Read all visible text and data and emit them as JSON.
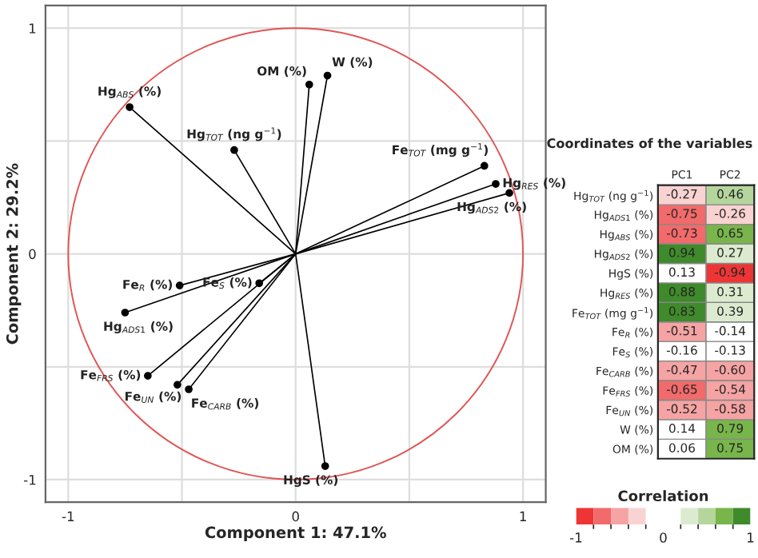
{
  "chart_data": [
    {
      "type": "scatter",
      "xlabel": "Component 1: 47.1%",
      "ylabel": "Component 2: 29.2%",
      "xlim": [
        -1.1,
        1.1
      ],
      "ylim": [
        -1.1,
        1.1
      ],
      "xticks": [
        {
          "value": -1,
          "label": "-1"
        },
        {
          "value": -0.5,
          "label": null
        },
        0,
        {
          "value": 0.5,
          "label": null
        },
        1
      ],
      "yticks": [
        {
          "value": -1,
          "label": "-1"
        },
        {
          "value": -0.5,
          "label": null
        },
        0,
        {
          "value": 0.5,
          "label": null
        },
        1
      ],
      "grid": true,
      "marker": "circle",
      "legend": false,
      "series": [
        {
          "name": "Hg$_{TOT}$ (ng g$^{−1}$)",
          "color": "#000000",
          "x": [
            -0.27
          ],
          "values": [
            0.46
          ]
        },
        {
          "name": "Hg$_{ADS1}$ (%)",
          "color": "#000000",
          "x": [
            -0.75
          ],
          "values": [
            -0.26
          ]
        },
        {
          "name": "Hg$_{ABS}$ (%)",
          "color": "#000000",
          "x": [
            -0.73
          ],
          "values": [
            0.65
          ]
        },
        {
          "name": "Hg$_{ADS2}$ (%)",
          "color": "#000000",
          "x": [
            0.94
          ],
          "values": [
            0.27
          ]
        },
        {
          "name": "HgS (%)",
          "color": "#000000",
          "x": [
            0.13
          ],
          "values": [
            -0.94
          ]
        },
        {
          "name": "Hg$_{RES}$ (%)",
          "color": "#000000",
          "x": [
            0.88
          ],
          "values": [
            0.31
          ]
        },
        {
          "name": "Fe$_{TOT}$ (mg g$^{−1}$)",
          "color": "#000000",
          "x": [
            0.83
          ],
          "values": [
            0.39
          ]
        },
        {
          "name": "Fe$_{R}$ (%)",
          "color": "#000000",
          "x": [
            -0.51
          ],
          "values": [
            -0.14
          ]
        },
        {
          "name": "Fe$_{S}$ (%)",
          "color": "#000000",
          "x": [
            -0.16
          ],
          "values": [
            -0.13
          ]
        },
        {
          "name": "Fe$_{CARB}$ (%)",
          "color": "#000000",
          "x": [
            -0.47
          ],
          "values": [
            -0.6
          ]
        },
        {
          "name": "Fe$_{FRS}$ (%)",
          "color": "#000000",
          "x": [
            -0.65
          ],
          "values": [
            -0.54
          ]
        },
        {
          "name": "Fe$_{UN}$ (%)",
          "color": "#000000",
          "x": [
            -0.52
          ],
          "values": [
            -0.58
          ]
        },
        {
          "name": "W (%)",
          "color": "#000000",
          "x": [
            0.14
          ],
          "values": [
            0.79
          ]
        },
        {
          "name": "OM (%)",
          "color": "#000000",
          "x": [
            0.06
          ],
          "values": [
            0.75
          ]
        }
      ]
    },
    {
      "type": "heatmap",
      "title": "Coordinates of the variables",
      "clabel": "Correlation",
      "categories": [
        "PC1",
        "PC2"
      ],
      "y_categories": [
        "Hg$_{TOT}$ (ng g$^{−1}$)",
        "Hg$_{ADS1}$ (%)",
        "Hg$_{ABS}$ (%)",
        "Hg$_{ADS2}$ (%)",
        "HgS (%)",
        "Hg$_{RES}$ (%)",
        "Fe$_{TOT}$ (mg g$^{−1}$)",
        "Fe$_{R}$ (%)",
        "Fe$_{S}$ (%)",
        "Fe$_{CARB}$ (%)",
        "Fe$_{FRS}$ (%)",
        "Fe$_{UN}$ (%)",
        "W (%)",
        "OM (%)"
      ],
      "cells": [
        [
          -0.27,
          0.46
        ],
        [
          -0.75,
          -0.26
        ],
        [
          -0.73,
          0.65
        ],
        [
          0.94,
          0.27
        ],
        [
          0.13,
          -0.94
        ],
        [
          0.88,
          0.31
        ],
        [
          0.83,
          0.39
        ],
        [
          -0.51,
          -0.14
        ],
        [
          -0.16,
          -0.13
        ],
        [
          -0.47,
          -0.6
        ],
        [
          -0.65,
          -0.54
        ],
        [
          -0.52,
          -0.58
        ],
        [
          0.14,
          0.79
        ],
        [
          0.06,
          0.75
        ]
      ],
      "cell_labels": [
        [
          "-0.27",
          "0.46"
        ],
        [
          "-0.75",
          "-0.26"
        ],
        [
          "-0.73",
          "0.65"
        ],
        [
          "0.94",
          "0.27"
        ],
        [
          "0.13",
          "-0.94"
        ],
        [
          "0.88",
          "0.31"
        ],
        [
          "0.83",
          "0.39"
        ],
        [
          "-0.51",
          "-0.14"
        ],
        [
          "-0.16",
          "-0.13"
        ],
        [
          "-0.47",
          "-0.60"
        ],
        [
          "-0.65",
          "-0.54"
        ],
        [
          "-0.52",
          "-0.58"
        ],
        [
          "0.14",
          "0.79"
        ],
        [
          "0.06",
          "0.75"
        ]
      ],
      "clim": [
        -1,
        1
      ],
      "cticks": [
        {
          "value": -1,
          "label": "-1"
        },
        0,
        1
      ],
      "colors": [
        "#ee3535",
        "#f26a6a",
        "#f5a3a3",
        "#f9d2d2",
        "#ffffff",
        "#ffffff",
        "#dcebcf",
        "#b4d69c",
        "#78b54a",
        "#3f8a2b"
      ]
    }
  ]
}
